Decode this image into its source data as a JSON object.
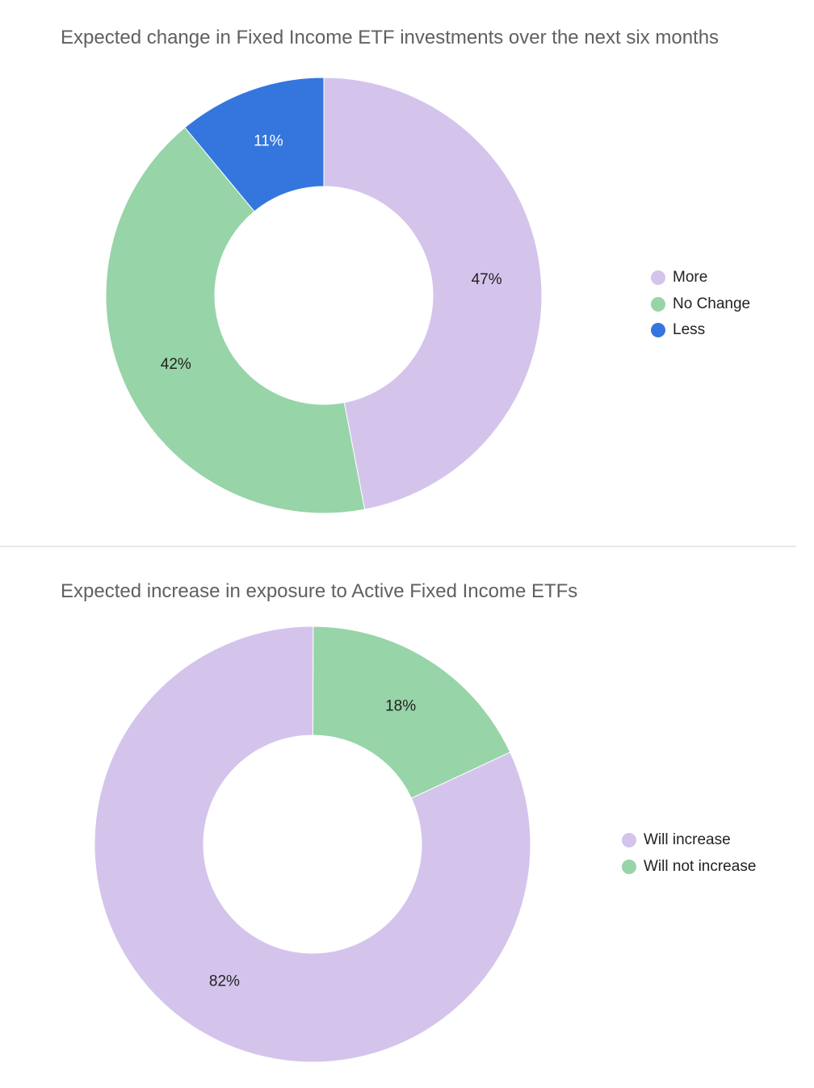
{
  "chart_data": [
    {
      "type": "pie",
      "title": "Expected change in Fixed Income ETF investments over the next six months",
      "categories": [
        "More",
        "No Change",
        "Less"
      ],
      "values": [
        47,
        42,
        11
      ],
      "value_labels": [
        "47%",
        "42%",
        "11%"
      ],
      "colors": [
        "#d4c4ec",
        "#97d4a8",
        "#3576de"
      ],
      "donut": true,
      "start_angle_deg": 0,
      "legend": "right"
    },
    {
      "type": "pie",
      "title": "Expected increase in exposure to Active Fixed Income ETFs",
      "categories": [
        "Will increase",
        "Will not increase"
      ],
      "values": [
        82,
        18
      ],
      "value_labels": [
        "82%",
        "18%"
      ],
      "colors": [
        "#d4c4ec",
        "#97d4a8"
      ],
      "donut": true,
      "start_angle_deg": 65,
      "legend": "right"
    }
  ]
}
